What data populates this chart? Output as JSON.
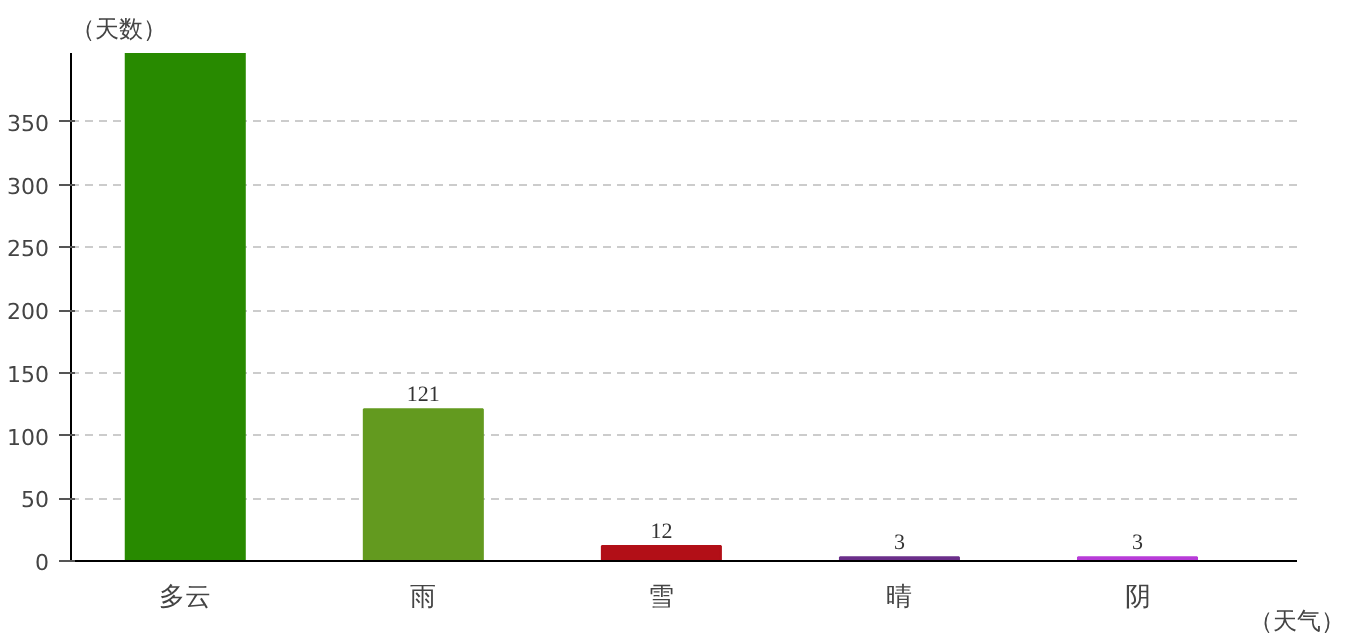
{
  "chart_data": {
    "type": "bar",
    "ylabel": "（天数）",
    "xlabel": "（天气）",
    "categories": [
      "多云",
      "雨",
      "雪",
      "晴",
      "阴"
    ],
    "values": [
      405,
      121,
      12,
      3,
      3
    ],
    "value_labels": [
      null,
      "121",
      "12",
      "3",
      "3"
    ],
    "colors": [
      "#288a00",
      "#639a1f",
      "#b20f17",
      "#6b2f8a",
      "#b83cd8"
    ],
    "ylim": [
      0,
      405
    ],
    "yticks": [
      0,
      50,
      100,
      150,
      200,
      250,
      300,
      350
    ],
    "grid": "y"
  }
}
